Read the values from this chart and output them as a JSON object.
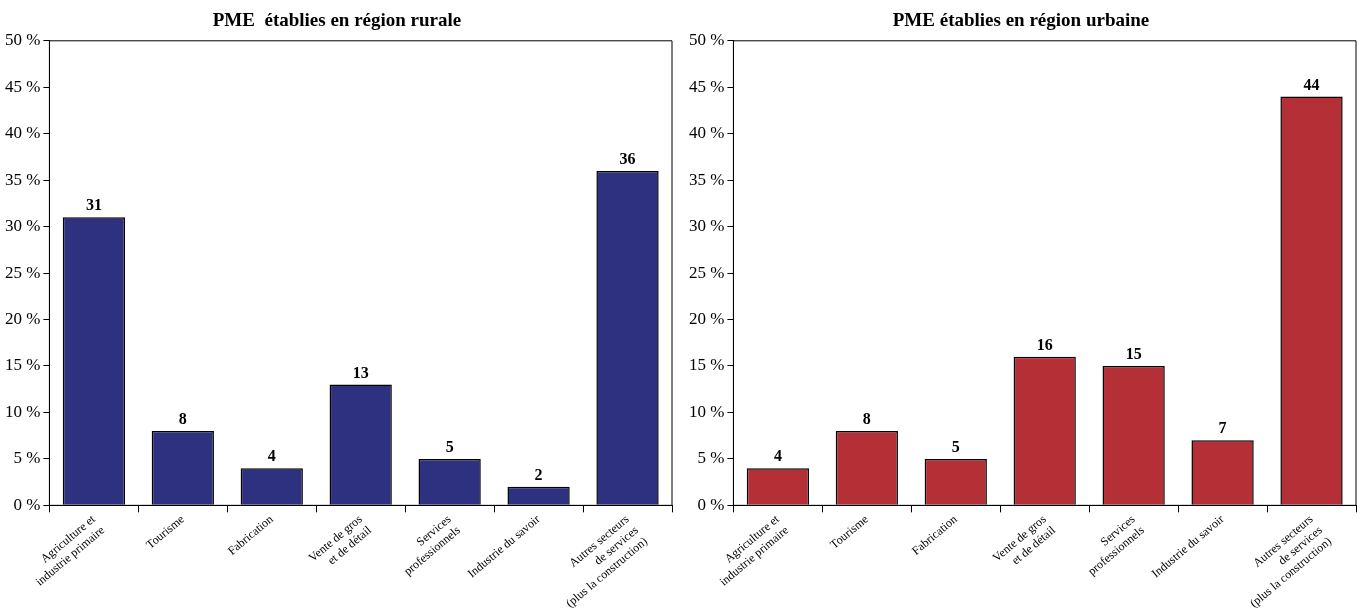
{
  "chart_data": [
    {
      "type": "bar",
      "title": "PME  établies en région rurale",
      "categories": [
        "Agriculture et\nindustrie primaire",
        "Tourisme",
        "Fabrication",
        "Vente de gros\net de détail",
        "Services\nprofessionnels",
        "Industrie du savoir",
        "Autres secteurs\nde services\n(plus la construction)"
      ],
      "values": [
        31,
        8,
        4,
        13,
        5,
        2,
        36
      ],
      "color": "#2e3180",
      "ylim": [
        0,
        50
      ],
      "yticks": [
        {
          "value": 0,
          "label": "0 %"
        },
        {
          "value": 5,
          "label": "5 %"
        },
        {
          "value": 10,
          "label": "10 %"
        },
        {
          "value": 15,
          "label": "15 %"
        },
        {
          "value": 20,
          "label": "20 %"
        },
        {
          "value": 25,
          "label": "25 %"
        },
        {
          "value": 30,
          "label": "30 %"
        },
        {
          "value": 35,
          "label": "35 %"
        },
        {
          "value": 40,
          "label": "40 %"
        },
        {
          "value": 45,
          "label": "45 %"
        },
        {
          "value": 50,
          "label": "50 %"
        }
      ],
      "grid": false,
      "legend": false,
      "data_labels": true
    },
    {
      "type": "bar",
      "title": "PME établies en région urbaine",
      "categories": [
        "Agriculture et\nindustrie primaire",
        "Tourisme",
        "Fabrication",
        "Vente de gros\net de détail",
        "Services\nprofessionnels",
        "Industrie du savoir",
        "Autres secteurs\nde services\n(plus la construction)"
      ],
      "values": [
        4,
        8,
        5,
        16,
        15,
        7,
        44
      ],
      "color": "#b52f37",
      "ylim": [
        0,
        50
      ],
      "yticks": [
        {
          "value": 0,
          "label": "0 %"
        },
        {
          "value": 5,
          "label": "5 %"
        },
        {
          "value": 10,
          "label": "10 %"
        },
        {
          "value": 15,
          "label": "15 %"
        },
        {
          "value": 20,
          "label": "20 %"
        },
        {
          "value": 25,
          "label": "25 %"
        },
        {
          "value": 30,
          "label": "30 %"
        },
        {
          "value": 35,
          "label": "35 %"
        },
        {
          "value": 40,
          "label": "40 %"
        },
        {
          "value": 45,
          "label": "45 %"
        },
        {
          "value": 50,
          "label": "50 %"
        }
      ],
      "grid": false,
      "legend": false,
      "data_labels": true
    }
  ]
}
